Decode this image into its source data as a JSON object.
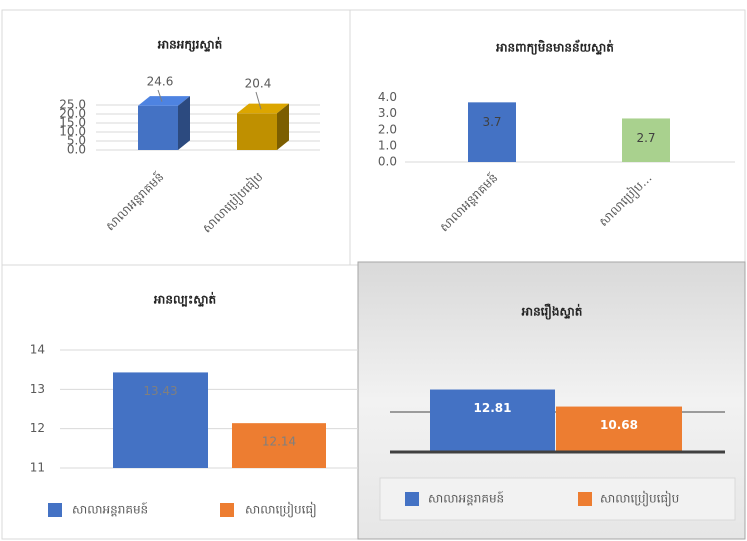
{
  "chart_data": [
    {
      "type": "bar3d",
      "title": "អានអក្សរស្ទាត់",
      "categories": [
        "សាលាអន្តរាគមន៍",
        "សាលាប្រៀបធៀប"
      ],
      "values": [
        24.6,
        20.4
      ],
      "colors": [
        "#4472c4",
        "#bf9000"
      ],
      "ylim": [
        0,
        25
      ],
      "yticks": [
        {
          "value": 0,
          "label": "0.0"
        },
        {
          "value": 5,
          "label": "5.0"
        },
        {
          "value": 10,
          "label": "10.0"
        },
        {
          "value": 15,
          "label": "15.0"
        },
        {
          "value": 20,
          "label": "20.0"
        },
        {
          "value": 25,
          "label": "25.0"
        }
      ],
      "grid": true
    },
    {
      "type": "bar",
      "title": "អានពាក្យមិនមានន័យស្ទាត់",
      "categories": [
        "សាលាអន្តរាគមន៍",
        "សាលាប្រៀប…"
      ],
      "values": [
        3.7,
        2.7
      ],
      "colors": [
        "#4472c4",
        "#a9d18e"
      ],
      "ylim": [
        0,
        4
      ],
      "yticks": [
        {
          "value": 0,
          "label": "0.0"
        },
        {
          "value": 1,
          "label": "1.0"
        },
        {
          "value": 2,
          "label": "2.0"
        },
        {
          "value": 3,
          "label": "3.0"
        },
        {
          "value": 4,
          "label": "4.0"
        }
      ],
      "grid": false
    },
    {
      "type": "bar",
      "title": "អានល្បះស្ទាត់",
      "series": [
        {
          "name": "សាលាអន្តរាគមន៍",
          "color": "#4472c4",
          "values": [
            13.43
          ]
        },
        {
          "name": "សាលាប្រៀបធៀ",
          "color": "#ed7d31",
          "values": [
            12.14
          ]
        }
      ],
      "ylim": [
        11,
        14
      ],
      "yticks": [
        11,
        12,
        13,
        14
      ],
      "grid": true,
      "legend": "bottom"
    },
    {
      "type": "bar",
      "title": "អានរឿងស្ទាត់",
      "series": [
        {
          "name": "សាលាអន្តរាគមន៍",
          "color": "#4472c4",
          "values": [
            12.81
          ]
        },
        {
          "name": "សាលាប្រៀបធៀប",
          "color": "#ed7d31",
          "values": [
            10.68
          ]
        }
      ],
      "ylim": [
        5,
        15
      ],
      "grid_lines": [
        10
      ],
      "legend": "bottom"
    }
  ]
}
